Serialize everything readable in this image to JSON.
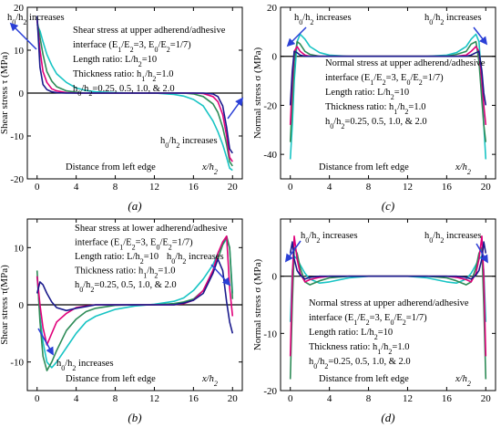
{
  "figure": {
    "panels": [
      {
        "id": "a",
        "caption": "(a)",
        "ylabel": "Shear stress τ (MPa)",
        "xlabel": "Distance from left edge",
        "xvar": "x/h",
        "xvar_sub": "2",
        "legend_lines": [
          "Shear stress at upper adherend/adhesive",
          "interface (E₁/E₂=3, E₀/E₂=1/7)",
          "Length ratio: L/h₂=10",
          "Thickness ratio: h₁/h₂=1.0",
          "h₀/h₂=0.25, 0.5, 1.0, & 2.0"
        ],
        "annotations": [
          "h₀/h₂ increases",
          "h₀/h₂ increases"
        ]
      },
      {
        "id": "b",
        "caption": "(b)",
        "ylabel": "Shear stress τ(MPa)",
        "xlabel": "Distance from left edge",
        "xvar": "x/h",
        "xvar_sub": "2",
        "legend_lines": [
          "Shear stress at lower adherend/adhesive",
          "interface (E₁/E₂=3, E₀/E₂=1/7)",
          "Length ratio: L/h₂=10",
          "Thickness ratio: h₁/h₂=1.0",
          "h₀/h₂=0.25, 0.5, 1.0, & 2.0"
        ],
        "annotations": [
          "h₀/h₂ increases",
          "h₀/h₂ increases"
        ]
      },
      {
        "id": "c",
        "caption": "(c)",
        "ylabel": "Normal stress σ (MPa)",
        "xlabel": "Distance from left edge",
        "xvar": "x/h",
        "xvar_sub": "2",
        "legend_lines": [
          "Normal  stress at upper adherend/adhesive",
          "interface (E₁/E₂=3, E₀/E₂=1/7)",
          "Length ratio: L/h₂=10",
          "Thickness ratio: h₁/h₂=1.0",
          "h₀/h₂=0.25, 0.5, 1.0, & 2.0"
        ],
        "annotations": [
          "h₀/h₂ increases",
          "h₀/h₂ increases"
        ]
      },
      {
        "id": "d",
        "caption": "(d)",
        "ylabel": "Normal stress σ (MPa)",
        "xlabel": "Distance from left edge",
        "xvar": "x/h",
        "xvar_sub": "2",
        "legend_lines": [
          "Normal  stress at upper adherend/adhesive",
          "interface (E₁/E₂=3, E₀/E₂=1/7)",
          "Length ratio: L/h₂=10",
          "Thickness ratio: h₁/h₂=1.0",
          "h₀/h₂=0.25, 0.5, 1.0, & 2.0"
        ],
        "annotations": [
          "h₀/h₂ increases",
          "h₀/h₂ increases"
        ]
      }
    ]
  },
  "chart_data": [
    {
      "type": "line",
      "panel": "a",
      "xlim": [
        -1,
        21
      ],
      "ylim": [
        -20,
        20
      ],
      "xticks": [
        0,
        4,
        8,
        12,
        16,
        20
      ],
      "yticks": [
        -20,
        -10,
        0,
        10,
        20
      ],
      "grid": false,
      "colors": [
        "#1a1a8c",
        "#e0007a",
        "#2e8b57",
        "#18c4c4"
      ],
      "x": [
        0,
        0.3,
        0.6,
        1,
        1.5,
        2,
        3,
        4,
        5,
        6,
        8,
        10,
        12,
        14,
        15,
        16,
        17,
        18,
        18.5,
        19,
        19.4,
        19.7,
        20
      ],
      "series": [
        {
          "values": [
            18,
            6,
            2,
            0.8,
            0.3,
            0.1,
            0,
            0,
            0,
            0,
            0,
            0,
            0,
            0,
            0,
            0,
            0,
            -0.2,
            -0.8,
            -3,
            -8,
            -13,
            -14
          ]
        },
        {
          "values": [
            17,
            10,
            5,
            2.5,
            1,
            0.5,
            0.1,
            0,
            0,
            0,
            0,
            0,
            0,
            0,
            0,
            0,
            -0.1,
            -0.8,
            -2,
            -5,
            -10,
            -15,
            -16
          ]
        },
        {
          "values": [
            17,
            13,
            9,
            5,
            2.8,
            1.5,
            0.5,
            0.2,
            0,
            0,
            0,
            0,
            0,
            0,
            0,
            -0.2,
            -0.8,
            -2.5,
            -4.5,
            -8,
            -12,
            -16,
            -17
          ]
        },
        {
          "values": [
            16,
            14.5,
            12,
            9,
            6.5,
            4.5,
            2.5,
            1.2,
            0.6,
            0.3,
            0.1,
            0,
            0,
            -0.3,
            -0.7,
            -1.5,
            -3,
            -6.5,
            -9,
            -12,
            -15,
            -17.5,
            -18
          ]
        }
      ]
    },
    {
      "type": "line",
      "panel": "b",
      "xlim": [
        -1,
        21
      ],
      "ylim": [
        -15,
        15
      ],
      "xticks": [
        0,
        4,
        8,
        12,
        16,
        20
      ],
      "yticks": [
        -10,
        0,
        10
      ],
      "grid": false,
      "colors": [
        "#1a1a8c",
        "#e0007a",
        "#2e8b57",
        "#18c4c4"
      ],
      "x": [
        0,
        0.3,
        0.6,
        1,
        1.5,
        2,
        3,
        4,
        5,
        6,
        8,
        10,
        12,
        14,
        15,
        16,
        17,
        18,
        18.5,
        19,
        19.4,
        19.7,
        20
      ],
      "series": [
        {
          "values": [
            2,
            4,
            3.5,
            2,
            0.5,
            -0.5,
            -1,
            -0.6,
            -0.3,
            0,
            0,
            0,
            0,
            0,
            0.3,
            0.8,
            2,
            5.5,
            8,
            6,
            0.5,
            -3,
            -5
          ]
        },
        {
          "values": [
            5,
            0,
            -4,
            -7,
            -5,
            -3,
            -1.5,
            -0.5,
            -0.2,
            0,
            0,
            0,
            0,
            0,
            0.2,
            0.8,
            2.5,
            6,
            9,
            11,
            12,
            3,
            -2
          ]
        },
        {
          "values": [
            6,
            -3,
            -9,
            -11.5,
            -10,
            -8,
            -4.5,
            -2.5,
            -1.2,
            -0.6,
            -0.1,
            0,
            0,
            0.2,
            0.5,
            1,
            2.5,
            6,
            8,
            10.5,
            12,
            10,
            1
          ]
        },
        {
          "values": [
            5,
            -2,
            -6.5,
            -10,
            -11,
            -10,
            -7.5,
            -5,
            -3,
            -2,
            -0.8,
            -0.2,
            0.1,
            0.6,
            1.2,
            2.5,
            4.5,
            7,
            9,
            10.5,
            11.5,
            10,
            2
          ]
        }
      ]
    },
    {
      "type": "line",
      "panel": "c",
      "xlim": [
        -1,
        21
      ],
      "ylim": [
        -50,
        20
      ],
      "xticks": [
        0,
        4,
        8,
        12,
        16,
        20
      ],
      "yticks": [
        -40,
        -20,
        0,
        20
      ],
      "grid": false,
      "colors": [
        "#1a1a8c",
        "#e0007a",
        "#2e8b57",
        "#18c4c4"
      ],
      "x": [
        0,
        0.2,
        0.4,
        0.7,
        1,
        1.5,
        2,
        3,
        4,
        6,
        8,
        10,
        12,
        14,
        16,
        17,
        18,
        18.5,
        19,
        19.3,
        19.6,
        19.8,
        20
      ],
      "series": [
        {
          "values": [
            -20,
            -6,
            2,
            1.5,
            0.5,
            0,
            0,
            0,
            0,
            0,
            0,
            0,
            0,
            0,
            0,
            0,
            0,
            0.5,
            1.5,
            2,
            -6,
            -15,
            -20
          ]
        },
        {
          "values": [
            -28,
            -10,
            2,
            4,
            2,
            0.5,
            0,
            0,
            0,
            0,
            0,
            0,
            0,
            0,
            0,
            0,
            0.5,
            2,
            4,
            2,
            -10,
            -20,
            -28
          ]
        },
        {
          "values": [
            -35,
            -18,
            -2,
            6,
            5,
            2,
            0.8,
            0,
            0,
            0,
            0,
            0,
            0,
            0,
            0,
            0.8,
            2,
            5,
            6,
            -2,
            -18,
            -28,
            -35
          ]
        },
        {
          "values": [
            -42,
            -28,
            -10,
            6,
            9,
            7,
            4,
            1.5,
            0.5,
            0,
            0,
            0,
            0,
            0,
            0.5,
            1.5,
            4,
            7,
            9,
            6,
            -10,
            -28,
            -42
          ]
        }
      ]
    },
    {
      "type": "line",
      "panel": "d",
      "xlim": [
        -1,
        21
      ],
      "ylim": [
        -20,
        10
      ],
      "xticks": [
        0,
        4,
        8,
        12,
        16,
        20
      ],
      "yticks": [
        -20,
        -10,
        0
      ],
      "grid": false,
      "colors": [
        "#1a1a8c",
        "#e0007a",
        "#2e8b57",
        "#18c4c4"
      ],
      "x": [
        0,
        0.2,
        0.4,
        0.7,
        1,
        1.5,
        2,
        3,
        4,
        6,
        8,
        10,
        12,
        14,
        16,
        17,
        18,
        18.5,
        19,
        19.3,
        19.6,
        19.8,
        20
      ],
      "series": [
        {
          "values": [
            4,
            6,
            3,
            1,
            0.2,
            -0.5,
            -0.2,
            0,
            0,
            0,
            0,
            0,
            0,
            0,
            0,
            0,
            -0.2,
            -0.5,
            0.2,
            1,
            3,
            6,
            4
          ]
        },
        {
          "values": [
            -14,
            0,
            7,
            3,
            0.5,
            -1,
            -0.6,
            -0.2,
            0,
            0,
            0,
            0,
            0,
            0,
            0,
            -0.2,
            -0.6,
            -1,
            0.5,
            3,
            7,
            0,
            -14
          ]
        },
        {
          "values": [
            -18,
            -5,
            5,
            4,
            1.5,
            -1,
            -1.5,
            -0.8,
            -0.3,
            0,
            0,
            0,
            0,
            0,
            -0.3,
            -0.8,
            -1.5,
            -1,
            1.5,
            4,
            5,
            -5,
            -18
          ]
        },
        {
          "values": [
            -8,
            1,
            3.5,
            3,
            2,
            0.5,
            -0.5,
            -1.2,
            -1,
            -0.3,
            0,
            0,
            0,
            -0.3,
            -1,
            -1.2,
            -0.5,
            0.5,
            2,
            3,
            3.5,
            1,
            -8
          ]
        }
      ]
    }
  ]
}
